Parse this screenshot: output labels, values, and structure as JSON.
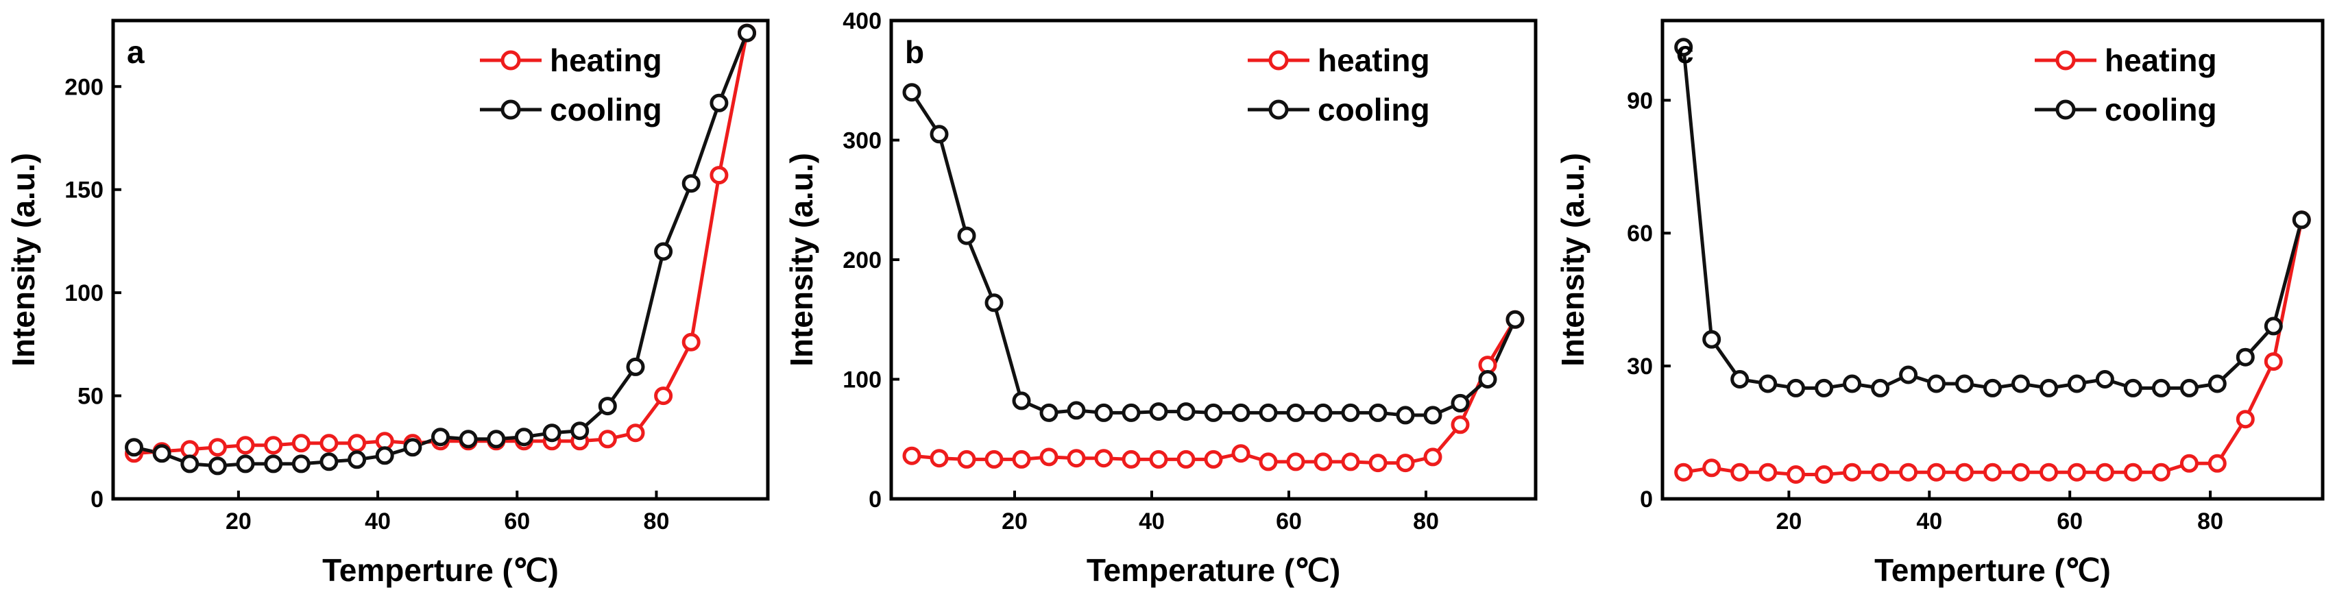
{
  "colors": {
    "heating": "#ee1c1c",
    "cooling": "#111111",
    "axis": "#000000"
  },
  "chart_data": [
    {
      "type": "line",
      "panel": "a",
      "xlabel": "Temperture (℃)",
      "ylabel": "Intensity (a.u.)",
      "xlim": [
        2,
        96
      ],
      "ylim": [
        0,
        232
      ],
      "xticks": [
        20,
        40,
        60,
        80
      ],
      "yticks": [
        0,
        50,
        100,
        150,
        200
      ],
      "legend_position": "top-right",
      "series": [
        {
          "name": "heating",
          "color": "#ee1c1c",
          "x": [
            5,
            9,
            13,
            17,
            21,
            25,
            29,
            33,
            37,
            41,
            45,
            49,
            53,
            57,
            61,
            65,
            69,
            73,
            77,
            81,
            85,
            89,
            93
          ],
          "y": [
            22,
            23,
            24,
            25,
            26,
            26,
            27,
            27,
            27,
            28,
            27,
            28,
            28,
            28,
            28,
            28,
            28,
            29,
            32,
            50,
            76,
            157,
            226
          ]
        },
        {
          "name": "cooling",
          "color": "#111111",
          "x": [
            5,
            9,
            13,
            17,
            21,
            25,
            29,
            33,
            37,
            41,
            45,
            49,
            53,
            57,
            61,
            65,
            69,
            73,
            77,
            81,
            85,
            89,
            93
          ],
          "y": [
            25,
            22,
            17,
            16,
            17,
            17,
            17,
            18,
            19,
            21,
            25,
            30,
            29,
            29,
            30,
            32,
            33,
            45,
            64,
            120,
            153,
            192,
            226
          ]
        }
      ]
    },
    {
      "type": "line",
      "panel": "b",
      "xlabel": "Temperature (℃)",
      "ylabel": "Intensity (a.u.)",
      "xlim": [
        2,
        96
      ],
      "ylim": [
        0,
        400
      ],
      "xticks": [
        20,
        40,
        60,
        80
      ],
      "yticks": [
        0,
        100,
        200,
        300,
        400
      ],
      "legend_position": "top-right",
      "series": [
        {
          "name": "heating",
          "color": "#ee1c1c",
          "x": [
            5,
            9,
            13,
            17,
            21,
            25,
            29,
            33,
            37,
            41,
            45,
            49,
            53,
            57,
            61,
            65,
            69,
            73,
            77,
            81,
            85,
            89,
            93
          ],
          "y": [
            36,
            34,
            33,
            33,
            33,
            35,
            34,
            34,
            33,
            33,
            33,
            33,
            38,
            31,
            31,
            31,
            31,
            30,
            30,
            35,
            62,
            112,
            150
          ]
        },
        {
          "name": "cooling",
          "color": "#111111",
          "x": [
            5,
            9,
            13,
            17,
            21,
            25,
            29,
            33,
            37,
            41,
            45,
            49,
            53,
            57,
            61,
            65,
            69,
            73,
            77,
            81,
            85,
            89,
            93
          ],
          "y": [
            340,
            305,
            220,
            164,
            82,
            72,
            74,
            72,
            72,
            73,
            73,
            72,
            72,
            72,
            72,
            72,
            72,
            72,
            70,
            70,
            80,
            100,
            150
          ]
        }
      ]
    },
    {
      "type": "line",
      "panel": "c",
      "xlabel": "Temperture (℃)",
      "ylabel": "Intensity (a.u.)",
      "xlim": [
        2,
        96
      ],
      "ylim": [
        0,
        108
      ],
      "xticks": [
        20,
        40,
        60,
        80
      ],
      "yticks": [
        0,
        30,
        60,
        90
      ],
      "legend_position": "top-right",
      "series": [
        {
          "name": "heating",
          "color": "#ee1c1c",
          "x": [
            5,
            9,
            13,
            17,
            21,
            25,
            29,
            33,
            37,
            41,
            45,
            49,
            53,
            57,
            61,
            65,
            69,
            73,
            77,
            81,
            85,
            89,
            93
          ],
          "y": [
            6,
            7,
            6,
            6,
            5.5,
            5.5,
            6,
            6,
            6,
            6,
            6,
            6,
            6,
            6,
            6,
            6,
            6,
            6,
            8,
            8,
            18,
            31,
            63
          ]
        },
        {
          "name": "cooling",
          "color": "#111111",
          "x": [
            5,
            9,
            13,
            17,
            21,
            25,
            29,
            33,
            37,
            41,
            45,
            49,
            53,
            57,
            61,
            65,
            69,
            73,
            77,
            81,
            85,
            89,
            93
          ],
          "y": [
            102,
            36,
            27,
            26,
            25,
            25,
            26,
            25,
            28,
            26,
            26,
            25,
            26,
            25,
            26,
            27,
            25,
            25,
            25,
            26,
            32,
            39,
            63
          ]
        }
      ]
    }
  ]
}
